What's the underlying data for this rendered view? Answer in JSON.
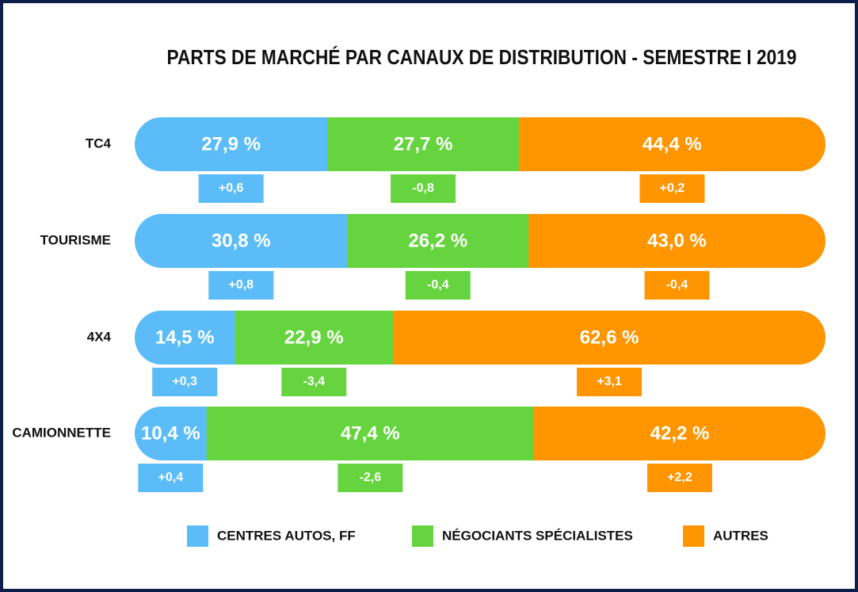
{
  "chart_data": {
    "type": "bar",
    "title": "PARTS DE MARCHÉ PAR CANAUX DE DISTRIBUTION - SEMESTRE I 2019",
    "categories": [
      "TC4",
      "TOURISME",
      "4X4",
      "CAMIONNETTE"
    ],
    "series": [
      {
        "name": "CENTRES AUTOS,  FF",
        "color": "#5bbcf8",
        "values": [
          27.9,
          30.8,
          14.5,
          10.4
        ],
        "value_labels": [
          "27,9 %",
          "30,8 %",
          "14,5 %",
          "10,4 %"
        ],
        "changes": [
          0.6,
          0.8,
          0.3,
          0.4
        ],
        "change_labels": [
          "+0,6",
          "+0,8",
          "+0,3",
          "+0,4"
        ]
      },
      {
        "name": "NÉGOCIANTS SPÉCIALISTES",
        "color": "#66d43f",
        "values": [
          27.7,
          26.2,
          22.9,
          47.4
        ],
        "value_labels": [
          "27,7 %",
          "26,2 %",
          "22,9 %",
          "47,4 %"
        ],
        "changes": [
          -0.8,
          -0.4,
          -3.4,
          -2.6
        ],
        "change_labels": [
          "-0,8",
          "-0,4",
          "-3,4",
          "-2,6"
        ]
      },
      {
        "name": "AUTRES",
        "color": "#ff9500",
        "values": [
          44.4,
          43.0,
          62.6,
          42.2
        ],
        "value_labels": [
          "44,4 %",
          "43,0 %",
          "62,6 %",
          "42,2 %"
        ],
        "changes": [
          0.2,
          -0.4,
          3.1,
          2.2
        ],
        "change_labels": [
          "+0,2",
          "-0,4",
          "+3,1",
          "+2,2"
        ]
      }
    ]
  }
}
